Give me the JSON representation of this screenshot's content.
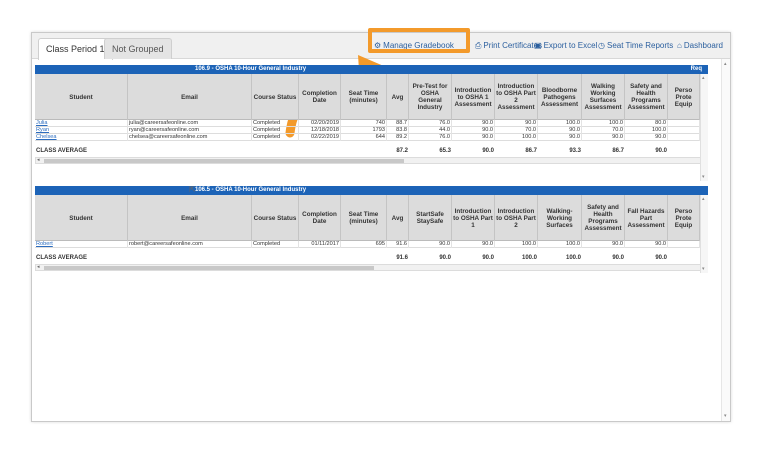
{
  "tabs": [
    {
      "label": "Class Period 1",
      "active": true
    },
    {
      "label": "Not Grouped",
      "active": false
    }
  ],
  "toolbar": [
    {
      "label": "Manage Gradebook",
      "icon": "gear-icon",
      "glyph": "⚙"
    },
    {
      "label": "Print Certificates",
      "icon": "print-icon",
      "glyph": "⎙"
    },
    {
      "label": "Export to Excel",
      "icon": "save-icon",
      "glyph": "▣"
    },
    {
      "label": "Seat Time Reports",
      "icon": "clock-icon",
      "glyph": "◷"
    },
    {
      "label": "Dashboard",
      "icon": "home-icon",
      "glyph": "⌂"
    }
  ],
  "colors": {
    "accent": "#1c63b7",
    "highlight": "#f39a2b",
    "link": "#2b6cbf"
  },
  "sections": [
    {
      "title": "106.9 - OSHA 10-Hour General Industry",
      "right_label": "Req",
      "headers": [
        "Student",
        "Email",
        "Course Status",
        "Completion Date",
        "Seat Time (minutes)",
        "Avg",
        "Pre-Test for OSHA General Industry",
        "Introduction to OSHA 1 Assessment",
        "Introduction to OSHA Part 2 Assessment",
        "Bloodborne Pathogens Assessment",
        "Walking Working Surfaces Assessment",
        "Safety and Health Programs Assessment",
        "Perso Prote Equip"
      ],
      "rows": [
        [
          "Julia",
          "julia@careersafeonline.com",
          "Completed",
          "02/20/2019",
          "740",
          "88.7",
          "76.0",
          "90.0",
          "90.0",
          "100.0",
          "100.0",
          "80.0",
          ""
        ],
        [
          "Ryan",
          "ryan@careersafeonline.com",
          "Completed",
          "12/18/2018",
          "1793",
          "83.8",
          "44.0",
          "90.0",
          "70.0",
          "90.0",
          "70.0",
          "100.0",
          ""
        ],
        [
          "Chelsea",
          "chelsea@careersafeonline.com",
          "Completed",
          "02/22/2019",
          "644",
          "89.2",
          "76.0",
          "90.0",
          "100.0",
          "90.0",
          "90.0",
          "90.0",
          ""
        ]
      ],
      "average_label": "CLASS AVERAGE",
      "averages": [
        "87.2",
        "65.3",
        "90.0",
        "86.7",
        "93.3",
        "86.7",
        "90.0"
      ]
    },
    {
      "title": "106.5 - OSHA 10-Hour General Industry",
      "right_label": "",
      "headers": [
        "Student",
        "Email",
        "Course Status",
        "Completion Date",
        "Seat Time (minutes)",
        "Avg",
        "StartSafe StaySafe",
        "Introduction to OSHA Part 1",
        "Introduction to OSHA Part 2",
        "Walking-Working Surfaces",
        "Safety and Health Programs Assessment",
        "Fall Hazards Part Assessment",
        "Perso Prote Equip"
      ],
      "rows": [
        [
          "Robert",
          "robert@careersafeonline.com",
          "Completed",
          "01/11/2017",
          "695",
          "91.6",
          "90.0",
          "90.0",
          "100.0",
          "100.0",
          "90.0",
          "90.0",
          ""
        ]
      ],
      "average_label": "CLASS AVERAGE",
      "averages": [
        "91.6",
        "90.0",
        "90.0",
        "100.0",
        "100.0",
        "90.0",
        "90.0"
      ]
    }
  ]
}
